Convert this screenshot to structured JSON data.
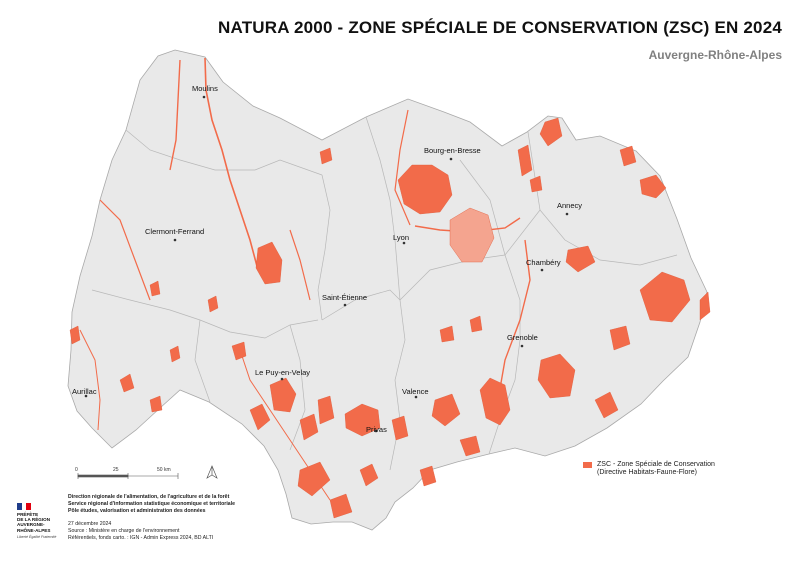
{
  "title": "NATURA 2000 - ZONE SPÉCIALE DE CONSERVATION (ZSC) EN 2024",
  "subtitle": "Auvergne-Rhône-Alpes",
  "cities": [
    {
      "name": "Moulins"
    },
    {
      "name": "Bourg-en-Bresse"
    },
    {
      "name": "Annecy"
    },
    {
      "name": "Clermont-Ferrand"
    },
    {
      "name": "Lyon"
    },
    {
      "name": "Chambéry"
    },
    {
      "name": "Saint-Étienne"
    },
    {
      "name": "Grenoble"
    },
    {
      "name": "Le Puy-en-Velay"
    },
    {
      "name": "Aurillac"
    },
    {
      "name": "Valence"
    },
    {
      "name": "Privas"
    }
  ],
  "legend": {
    "label_line1": "ZSC - Zone Spéciale de Conservation",
    "label_line2": "(Directive Habitats-Faune-Flore)",
    "color": "#f26b4a"
  },
  "scale": {
    "ticks": [
      "0",
      "25",
      "50 km"
    ]
  },
  "credits": {
    "line1": "Direction régionale de l'alimentation, de l'agriculture et de la forêt",
    "line2": "Service régional d'information statistique économique et territoriale",
    "line3": "Pôle études, valorisation et administration des données",
    "date": "27 décembre 2024",
    "source": "Source : Ministère en charge de l'environnement",
    "refs": "Référentiels, fonds carto. : IGN - Admin Express 2024, BD ALTI"
  },
  "logo": {
    "line1": "PRÉFÈTE",
    "line2": "DE LA RÉGION",
    "line3": "AUVERGNE-",
    "line4": "RHÔNE-ALPES",
    "motto": "Liberté Égalité Fraternité"
  },
  "colors": {
    "zsc": "#f26b4a",
    "land": "#e9e9e9",
    "border": "#b8b8b8"
  }
}
